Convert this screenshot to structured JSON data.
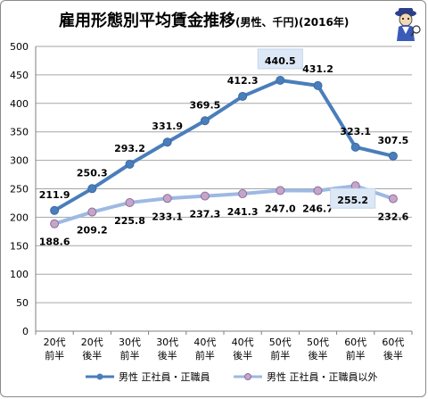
{
  "title": "雇用形態別平均賃金推移",
  "subtitle": "(男性、千円)(2016年)",
  "mascot_icon": "detective-mascot-icon",
  "chart_data": {
    "type": "line",
    "categories": [
      "20代\n前半",
      "20代\n後半",
      "30代\n前半",
      "30代\n後半",
      "40代\n前半",
      "40代\n後半",
      "50代\n前半",
      "50代\n後半",
      "60代\n前半",
      "60代\n後半"
    ],
    "ylim": [
      0,
      500
    ],
    "yticks": [
      0,
      50,
      100,
      150,
      200,
      250,
      300,
      350,
      400,
      450,
      500
    ],
    "grid": true,
    "legend_position": "bottom",
    "series": [
      {
        "name": "男性 正社員・正職員",
        "color": "#4a7ebb",
        "values": [
          211.9,
          250.3,
          293.2,
          331.9,
          369.5,
          412.3,
          440.5,
          431.2,
          323.1,
          307.5
        ],
        "labels": [
          "211.9",
          "250.3",
          "293.2",
          "331.9",
          "369.5",
          "412.3",
          "440.5",
          "431.2",
          "323.1",
          "307.5"
        ],
        "highlight_index": 6
      },
      {
        "name": "男性 正社員・正職員以外",
        "color": "#9db9e3",
        "values": [
          188.6,
          209.2,
          225.8,
          233.1,
          237.3,
          241.3,
          247.0,
          246.7,
          255.2,
          232.6
        ],
        "labels": [
          "188.6",
          "209.2",
          "225.8",
          "233.1",
          "237.3",
          "241.3",
          "247.0",
          "246.7",
          "255.2",
          "232.6"
        ],
        "highlight_index": 8
      }
    ]
  }
}
